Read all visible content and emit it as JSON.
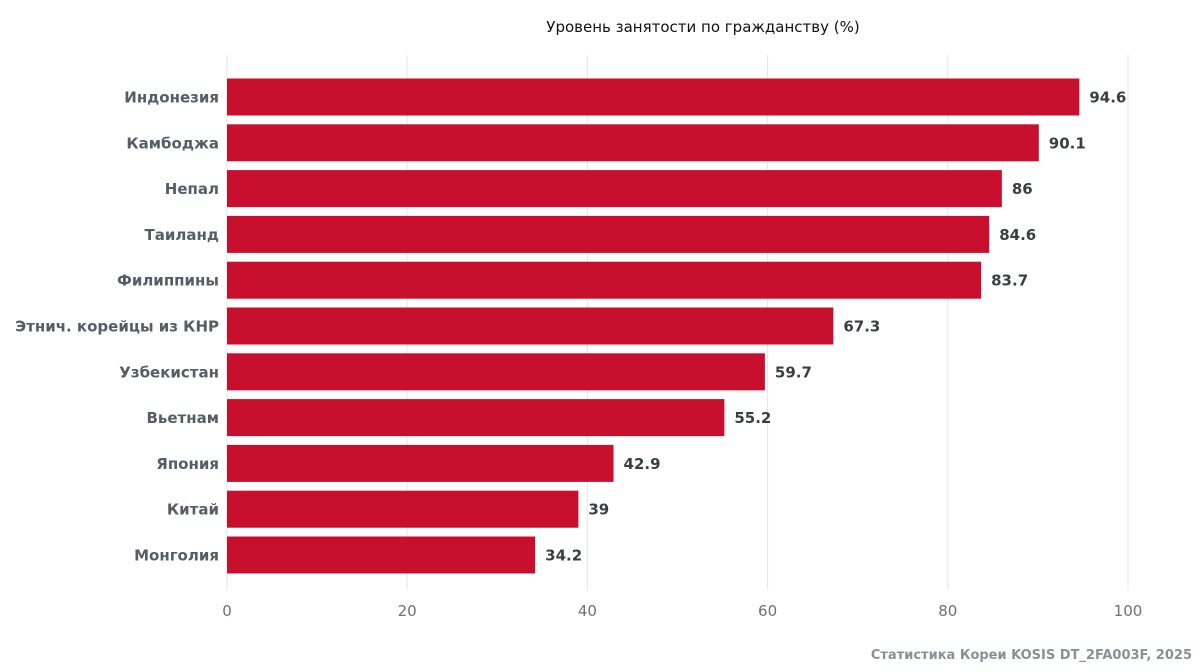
{
  "chart_data": {
    "type": "bar",
    "orientation": "horizontal",
    "title": "Уровень занятости по гражданству (%)",
    "categories": [
      "Индонезия",
      "Камбоджа",
      "Непал",
      "Таиланд",
      "Филиппины",
      "Этнич. корейцы из КНР",
      "Узбекистан",
      "Вьетнам",
      "Япония",
      "Китай",
      "Монголия"
    ],
    "values": [
      94.6,
      90.1,
      86,
      84.6,
      83.7,
      67.3,
      59.7,
      55.2,
      42.9,
      39,
      34.2
    ],
    "value_labels": [
      "94.6",
      "90.1",
      "86",
      "84.6",
      "83.7",
      "67.3",
      "59.7",
      "55.2",
      "42.9",
      "39",
      "34.2"
    ],
    "xlim": [
      0,
      100
    ],
    "xticks": [
      0,
      20,
      40,
      60,
      80,
      100
    ],
    "xtick_labels": [
      "0",
      "20",
      "40",
      "60",
      "80",
      "100"
    ],
    "grid": true,
    "bar_color": "#c8102e"
  },
  "source": "Статистика Кореи KOSIS DT_2FA003F, 2025"
}
